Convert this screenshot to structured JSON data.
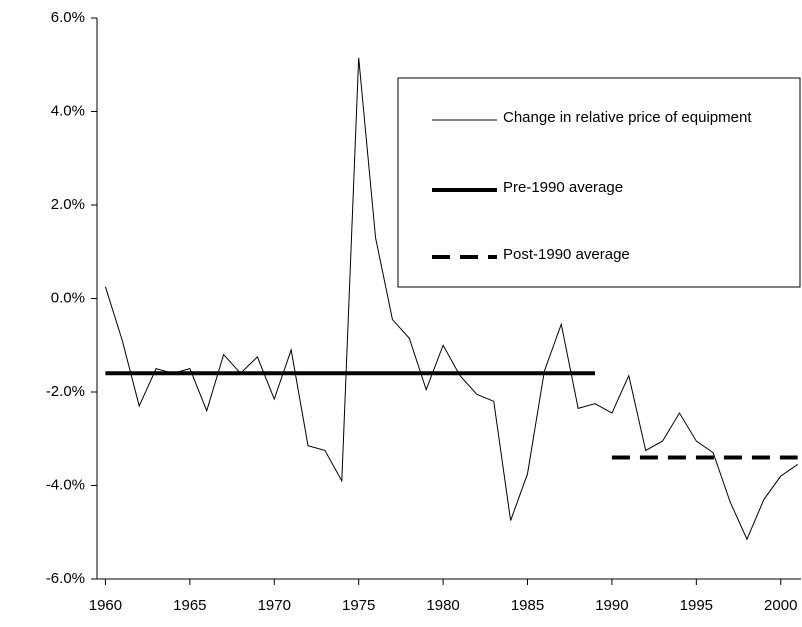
{
  "chart_data": {
    "type": "line",
    "x": [
      1960,
      1961,
      1962,
      1963,
      1964,
      1965,
      1966,
      1967,
      1968,
      1969,
      1970,
      1971,
      1972,
      1973,
      1974,
      1975,
      1976,
      1977,
      1978,
      1979,
      1980,
      1981,
      1982,
      1983,
      1984,
      1985,
      1986,
      1987,
      1988,
      1989,
      1990,
      1991,
      1992,
      1993,
      1994,
      1995,
      1996,
      1997,
      1998,
      1999,
      2000,
      2001
    ],
    "series": [
      {
        "name": "Change in relative price of equipment",
        "color": "#000000",
        "width": 1,
        "dash": false,
        "values": [
          0.25,
          -0.9,
          -2.3,
          -1.5,
          -1.6,
          -1.5,
          -2.4,
          -1.2,
          -1.6,
          -1.25,
          -2.15,
          -1.1,
          -3.15,
          -3.25,
          -3.9,
          5.15,
          1.3,
          -0.45,
          -0.85,
          -1.95,
          -1.0,
          -1.65,
          -2.05,
          -2.2,
          -4.75,
          -3.75,
          -1.55,
          -0.55,
          -2.35,
          -2.25,
          -2.45,
          -1.65,
          -3.25,
          -3.05,
          -2.45,
          -3.05,
          -3.3,
          -4.35,
          -5.15,
          -4.3,
          -3.8,
          -3.55
        ]
      },
      {
        "name": "Pre-1990 average",
        "color": "#000000",
        "width": 4,
        "dash": false,
        "values": [
          -1.6,
          -1.6,
          -1.6,
          -1.6,
          -1.6,
          -1.6,
          -1.6,
          -1.6,
          -1.6,
          -1.6,
          -1.6,
          -1.6,
          -1.6,
          -1.6,
          -1.6,
          -1.6,
          -1.6,
          -1.6,
          -1.6,
          -1.6,
          -1.6,
          -1.6,
          -1.6,
          -1.6,
          -1.6,
          -1.6,
          -1.6,
          -1.6,
          -1.6,
          -1.6,
          null,
          null,
          null,
          null,
          null,
          null,
          null,
          null,
          null,
          null,
          null,
          null
        ]
      },
      {
        "name": "Post-1990 average",
        "color": "#000000",
        "width": 4,
        "dash": true,
        "values": [
          null,
          null,
          null,
          null,
          null,
          null,
          null,
          null,
          null,
          null,
          null,
          null,
          null,
          null,
          null,
          null,
          null,
          null,
          null,
          null,
          null,
          null,
          null,
          null,
          null,
          null,
          null,
          null,
          null,
          null,
          -3.4,
          -3.4,
          -3.4,
          -3.4,
          -3.4,
          -3.4,
          -3.4,
          -3.4,
          -3.4,
          -3.4,
          -3.4,
          -3.4
        ]
      }
    ],
    "xlim": [
      1959.5,
      2001.2
    ],
    "xticks": [
      1960,
      1965,
      1970,
      1975,
      1980,
      1985,
      1990,
      1995,
      2000
    ],
    "ylim": [
      -6,
      6
    ],
    "yticks": [
      {
        "value": -6,
        "label": "-6.0%"
      },
      {
        "value": -4,
        "label": "-4.0%"
      },
      {
        "value": -2,
        "label": "-2.0%"
      },
      {
        "value": 0,
        "label": "0.0%"
      },
      {
        "value": 2,
        "label": "2.0%"
      },
      {
        "value": 4,
        "label": "4.0%"
      },
      {
        "value": 6,
        "label": "6.0%"
      }
    ],
    "grid": false
  }
}
